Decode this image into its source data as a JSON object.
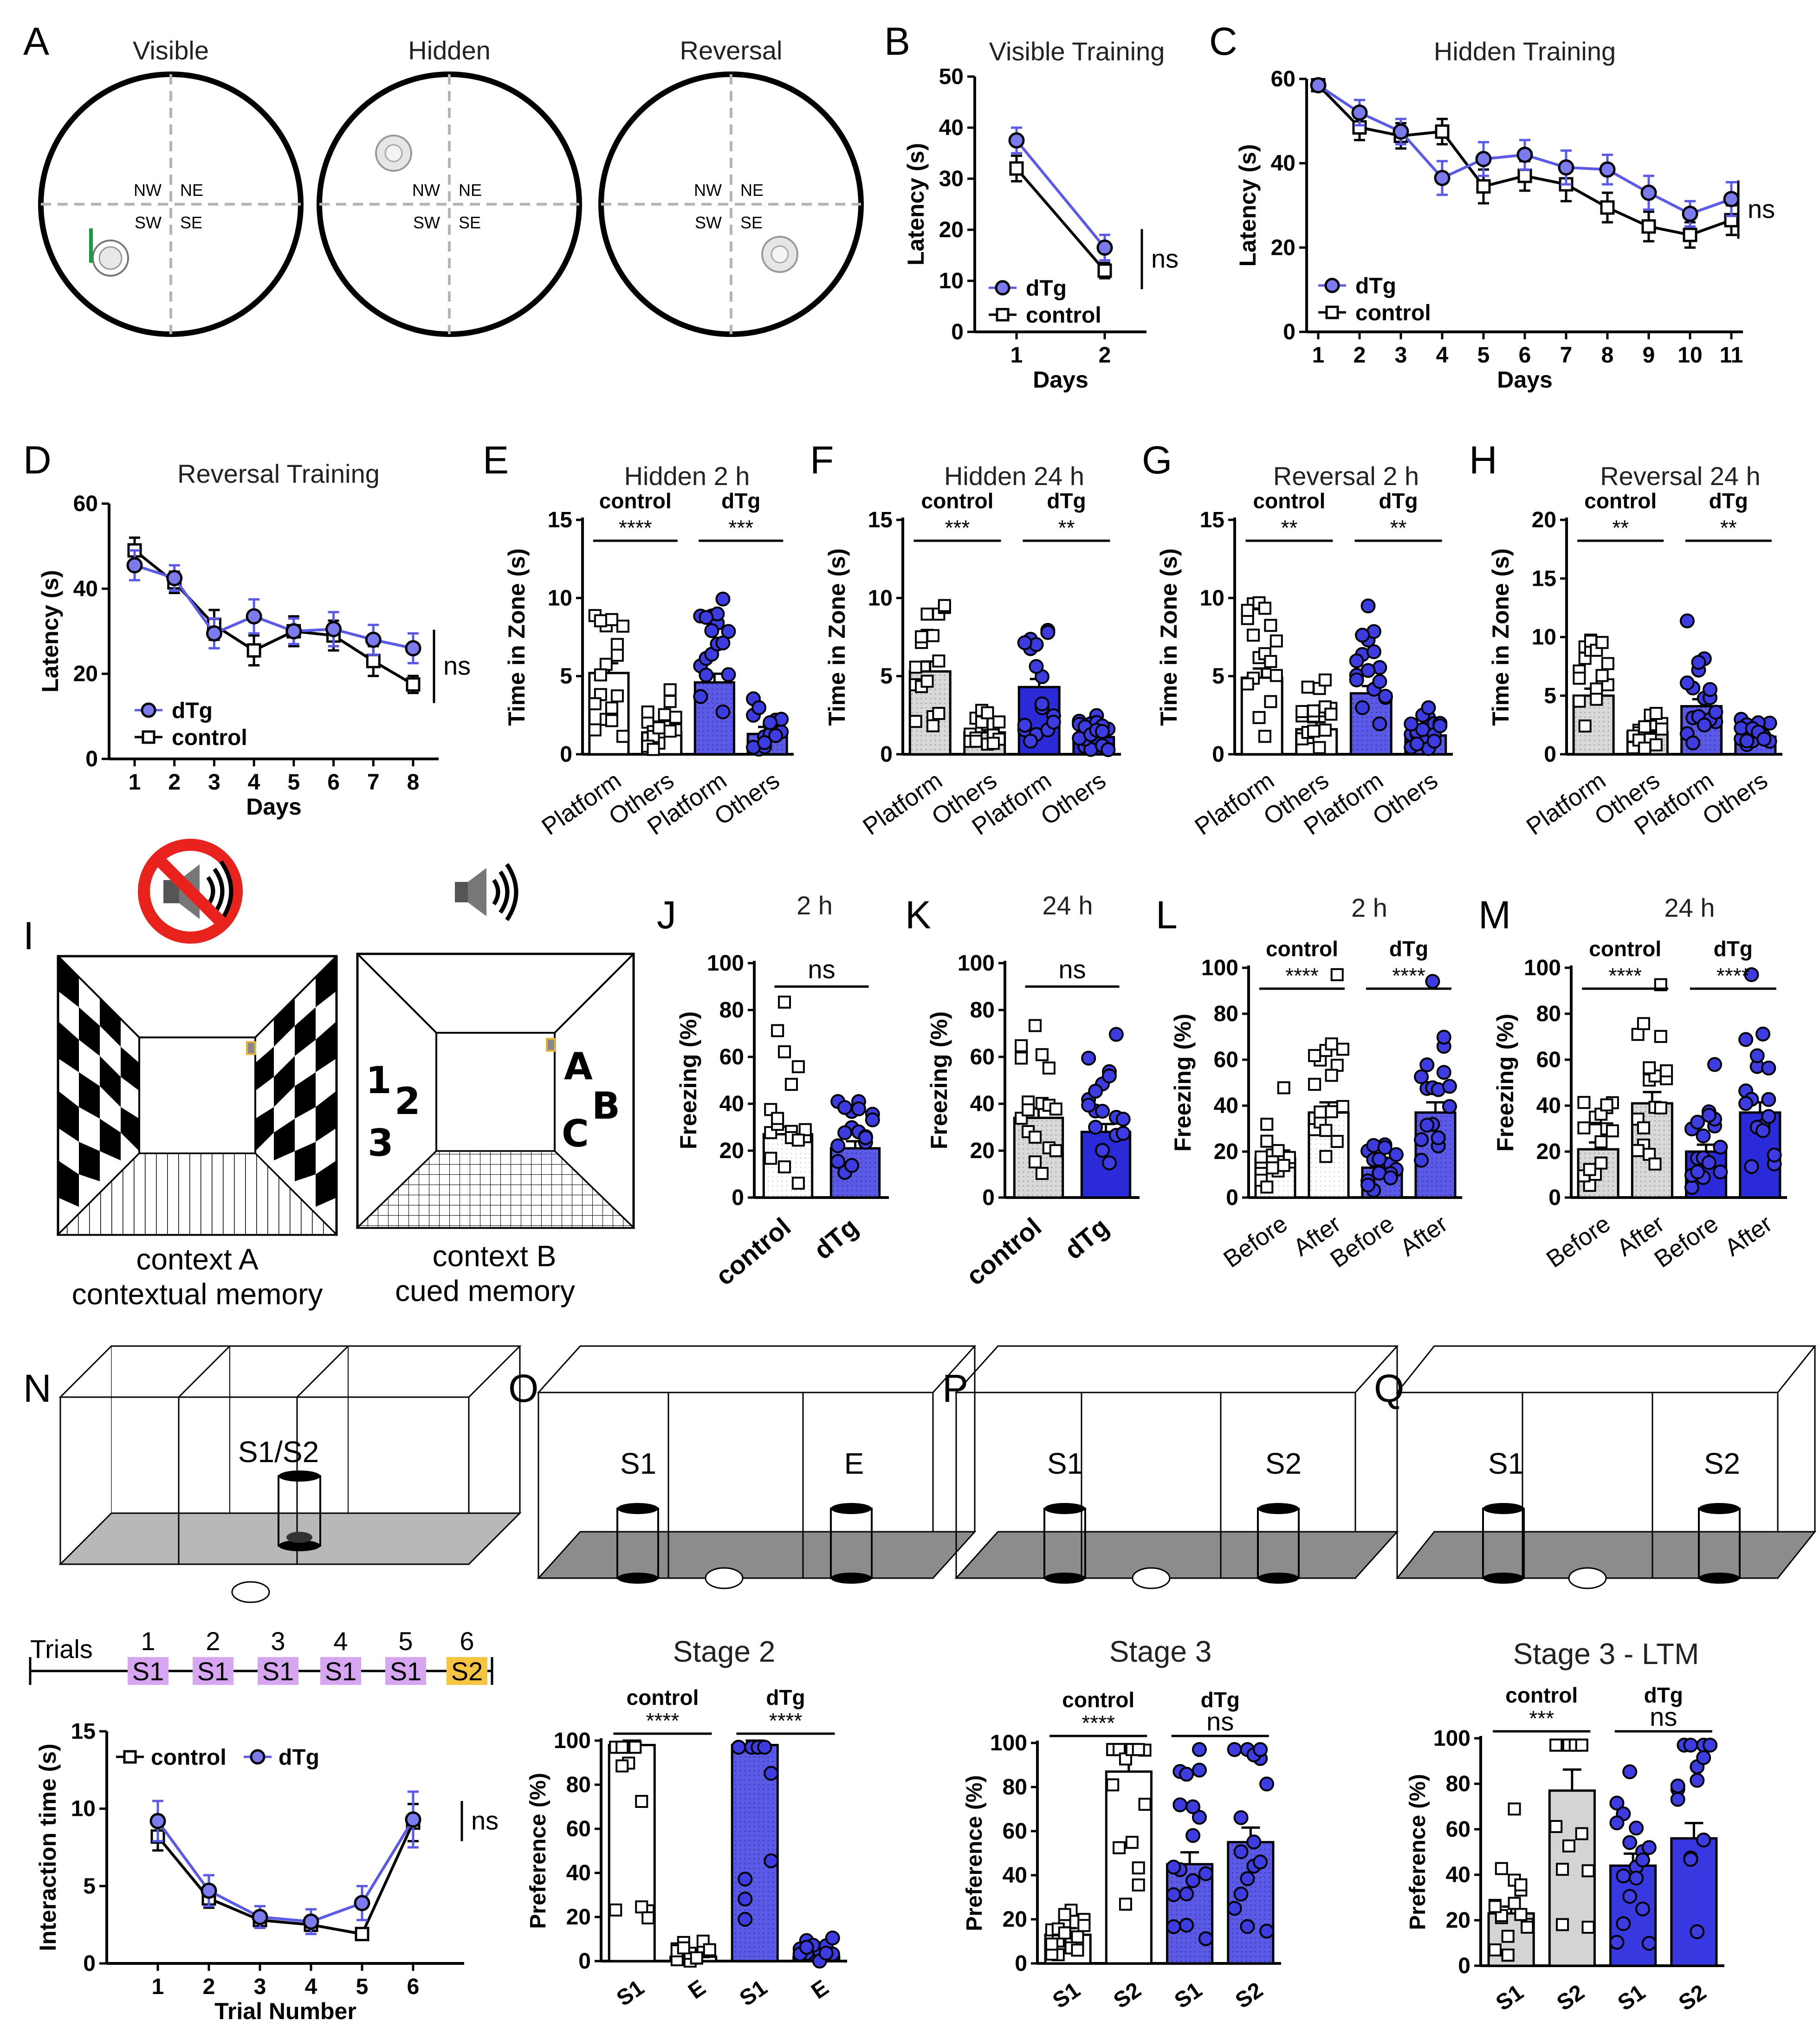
{
  "colors": {
    "dTg": "#5a5ae6",
    "dTg_dark": "#2a2ad8",
    "control_fill": "#ffffff",
    "control_gray": "#d8d8d8",
    "marker_blue": "#3c3ce0",
    "green": "#1c9a3a",
    "purple": "#d7a6f0",
    "orange": "#f5c542"
  },
  "panel_labels": [
    "A",
    "B",
    "C",
    "D",
    "E",
    "F",
    "G",
    "H",
    "I",
    "J",
    "K",
    "L",
    "M",
    "N",
    "O",
    "P",
    "Q"
  ],
  "panel_a": {
    "titles": [
      "Visible",
      "Hidden",
      "Reversal"
    ],
    "quadrants": [
      "NW",
      "NE",
      "SW",
      "SE"
    ]
  },
  "panel_i": {
    "context_a_line1": "context A",
    "context_a_line2": "contextual memory",
    "context_b_line1": "context B",
    "context_b_line2": "cued memory",
    "context_b_marks": [
      "1",
      "2",
      "3",
      "A",
      "B",
      "C"
    ],
    "sound_icon": "speaker-icon",
    "no_sound_icon": "no-sound-icon"
  },
  "panel_n": {
    "box_label": "S1/S2",
    "trials_label": "Trials",
    "trial_numbers": [
      "1",
      "2",
      "3",
      "4",
      "5",
      "6"
    ],
    "trial_stimuli": [
      "S1",
      "S1",
      "S1",
      "S1",
      "S1",
      "S2"
    ]
  },
  "panel_o": {
    "left": "S1",
    "right": "E"
  },
  "panel_p": {
    "left": "S1",
    "right": "S2"
  },
  "panel_q": {
    "left": "S1",
    "right": "S2"
  },
  "chart_data": [
    {
      "panel": "B",
      "type": "line",
      "title": "Visible Training",
      "xlabel": "Days",
      "ylabel": "Latency (s)",
      "x": [
        1,
        2
      ],
      "ylim": [
        0,
        50
      ],
      "yticks": [
        0,
        10,
        20,
        30,
        40,
        50
      ],
      "series": [
        {
          "name": "dTg",
          "values": [
            37.5,
            16.5
          ],
          "err": [
            2.5,
            2.5
          ]
        },
        {
          "name": "control",
          "values": [
            32,
            12
          ],
          "err": [
            2.5,
            1.5
          ]
        }
      ],
      "legend": [
        "dTg",
        "control"
      ],
      "stat": "ns"
    },
    {
      "panel": "C",
      "type": "line",
      "title": "Hidden Training",
      "xlabel": "Days",
      "ylabel": "Latency (s)",
      "x": [
        1,
        2,
        3,
        4,
        5,
        6,
        7,
        8,
        9,
        10,
        11
      ],
      "ylim": [
        0,
        60
      ],
      "yticks": [
        0,
        20,
        40,
        60
      ],
      "series": [
        {
          "name": "dTg",
          "values": [
            58.5,
            52,
            47.5,
            36.5,
            41,
            42,
            39,
            38.5,
            33,
            28,
            31.5
          ],
          "err": [
            1,
            3,
            3,
            4,
            4,
            3.5,
            4,
            3.5,
            4,
            3,
            4
          ]
        },
        {
          "name": "control",
          "values": [
            58.5,
            48.5,
            46.5,
            47.5,
            34.5,
            37,
            35,
            29.5,
            25,
            23,
            26.5
          ],
          "err": [
            1,
            3,
            3,
            3,
            4,
            3.5,
            4,
            3.5,
            3.5,
            3,
            3.5
          ]
        }
      ],
      "legend": [
        "dTg",
        "control"
      ],
      "stat": "ns"
    },
    {
      "panel": "D",
      "type": "line",
      "title": "Reversal Training",
      "xlabel": "Days",
      "ylabel": "Latency (s)",
      "x": [
        1,
        2,
        3,
        4,
        5,
        6,
        7,
        8
      ],
      "ylim": [
        0,
        60
      ],
      "yticks": [
        0,
        20,
        40,
        60
      ],
      "series": [
        {
          "name": "dTg",
          "values": [
            45.5,
            42.5,
            29.5,
            33.5,
            30,
            30.5,
            28,
            26
          ],
          "err": [
            3.5,
            3,
            3.5,
            4,
            3,
            4,
            3.5,
            3.5
          ]
        },
        {
          "name": "control",
          "values": [
            49,
            41.5,
            31.5,
            25.5,
            30,
            29,
            23,
            17.5
          ],
          "err": [
            3,
            2.5,
            3.5,
            3.5,
            3.5,
            3.5,
            3.5,
            2
          ]
        }
      ],
      "legend": [
        "dTg",
        "control"
      ],
      "stat": "ns"
    },
    {
      "panel": "E",
      "type": "bar",
      "title": "Hidden 2 h",
      "ylabel": "Time in Zone (s)",
      "categories": [
        "Platform",
        "Others",
        "Platform",
        "Others"
      ],
      "groups": [
        "control",
        "dTg"
      ],
      "values": [
        5.2,
        1.4,
        4.6,
        1.3
      ],
      "ylim": [
        0,
        15
      ],
      "yticks": [
        0,
        5,
        10,
        15
      ],
      "stats": [
        "****",
        "***"
      ]
    },
    {
      "panel": "F",
      "type": "bar",
      "title": "Hidden 24 h",
      "ylabel": "Time in Zone (s)",
      "categories": [
        "Platform",
        "Others",
        "Platform",
        "Others"
      ],
      "groups": [
        "control",
        "dTg"
      ],
      "values": [
        5.3,
        1.4,
        4.3,
        1.1
      ],
      "ylim": [
        0,
        15
      ],
      "yticks": [
        0,
        5,
        10,
        15
      ],
      "stats": [
        "***",
        "**"
      ]
    },
    {
      "panel": "G",
      "type": "bar",
      "title": "Reversal 2 h",
      "ylabel": "Time in Zone (s)",
      "categories": [
        "Platform",
        "Others",
        "Platform",
        "Others"
      ],
      "groups": [
        "control",
        "dTg"
      ],
      "values": [
        4.9,
        1.6,
        3.9,
        1.2
      ],
      "ylim": [
        0,
        15
      ],
      "yticks": [
        0,
        5,
        10,
        15
      ],
      "stats": [
        "**",
        "**"
      ]
    },
    {
      "panel": "H",
      "type": "bar",
      "title": "Reversal 24 h",
      "ylabel": "Time in Zone (s)",
      "categories": [
        "Platform",
        "Others",
        "Platform",
        "Others"
      ],
      "groups": [
        "control",
        "dTg"
      ],
      "values": [
        5,
        1.9,
        4.1,
        1.5
      ],
      "ylim": [
        0,
        20
      ],
      "yticks": [
        0,
        5,
        10,
        15,
        20
      ],
      "stats": [
        "**",
        "**"
      ]
    },
    {
      "panel": "J",
      "type": "bar",
      "title": "2 h",
      "ylabel": "Freezing (%)",
      "categories": [
        "control",
        "dTg"
      ],
      "values": [
        27,
        21
      ],
      "ylim": [
        0,
        100
      ],
      "yticks": [
        0,
        20,
        40,
        60,
        80,
        100
      ],
      "stats": [
        "ns"
      ]
    },
    {
      "panel": "K",
      "type": "bar",
      "title": "24 h",
      "ylabel": "Freezing (%)",
      "categories": [
        "control",
        "dTg"
      ],
      "values": [
        34,
        28
      ],
      "ylim": [
        0,
        100
      ],
      "yticks": [
        0,
        20,
        40,
        60,
        80,
        100
      ],
      "stats": [
        "ns"
      ]
    },
    {
      "panel": "L",
      "type": "bar",
      "title": "2 h",
      "ylabel": "Freezing (%)",
      "categories": [
        "Before",
        "After",
        "Before",
        "After"
      ],
      "groups": [
        "control",
        "dTg"
      ],
      "values": [
        17,
        37,
        13,
        37
      ],
      "ylim": [
        0,
        100
      ],
      "yticks": [
        0,
        20,
        40,
        60,
        80,
        100
      ],
      "stats": [
        "****",
        "****"
      ]
    },
    {
      "panel": "M",
      "type": "bar",
      "title": "24 h",
      "ylabel": "Freezing (%)",
      "categories": [
        "Before",
        "After",
        "Before",
        "After"
      ],
      "groups": [
        "control",
        "dTg"
      ],
      "values": [
        21,
        41,
        20,
        37
      ],
      "ylim": [
        0,
        100
      ],
      "yticks": [
        0,
        20,
        40,
        60,
        80,
        100
      ],
      "stats": [
        "****",
        "****"
      ]
    },
    {
      "panel": "N",
      "type": "line",
      "xlabel": "Trial Number",
      "ylabel": "Interaction time (s)",
      "x": [
        1,
        2,
        3,
        4,
        5,
        6
      ],
      "ylim": [
        0,
        15
      ],
      "yticks": [
        0,
        5,
        10,
        15
      ],
      "series": [
        {
          "name": "control",
          "values": [
            8.2,
            4.2,
            2.8,
            2.5,
            1.9,
            9.1
          ],
          "err": [
            0.9,
            0.6,
            0.5,
            0.4,
            0.3,
            1.2
          ]
        },
        {
          "name": "dTg",
          "values": [
            9.2,
            4.7,
            3.0,
            2.7,
            3.9,
            9.3
          ],
          "err": [
            1.3,
            1.0,
            0.7,
            0.8,
            1.1,
            1.8
          ]
        }
      ],
      "legend": [
        "control",
        "dTg"
      ],
      "stat": "ns"
    },
    {
      "panel": "O",
      "type": "bar",
      "title": "Stage 2",
      "ylabel": "Preference (%)",
      "categories": [
        "S1",
        "E",
        "S1",
        "E"
      ],
      "groups": [
        "control",
        "dTg"
      ],
      "values": [
        98,
        2,
        98,
        2
      ],
      "ylim": [
        0,
        100
      ],
      "yticks": [
        0,
        20,
        40,
        60,
        80,
        100
      ],
      "stats": [
        "****",
        "****"
      ]
    },
    {
      "panel": "P",
      "type": "bar",
      "title": "Stage 3",
      "ylabel": "Preference (%)",
      "categories": [
        "S1",
        "S2",
        "S1",
        "S2"
      ],
      "groups": [
        "control",
        "dTg"
      ],
      "values": [
        13,
        87,
        45,
        55
      ],
      "ylim": [
        0,
        100
      ],
      "yticks": [
        0,
        20,
        40,
        60,
        80,
        100
      ],
      "stats": [
        "****",
        "ns"
      ]
    },
    {
      "panel": "Q",
      "type": "bar",
      "title": "Stage 3 - LTM",
      "ylabel": "Preference (%)",
      "categories": [
        "S1",
        "S2",
        "S1",
        "S2"
      ],
      "groups": [
        "control",
        "dTg"
      ],
      "values": [
        23,
        77,
        44,
        56
      ],
      "ylim": [
        0,
        100
      ],
      "yticks": [
        0,
        20,
        40,
        60,
        80,
        100
      ],
      "stats": [
        "***",
        "ns"
      ]
    }
  ]
}
